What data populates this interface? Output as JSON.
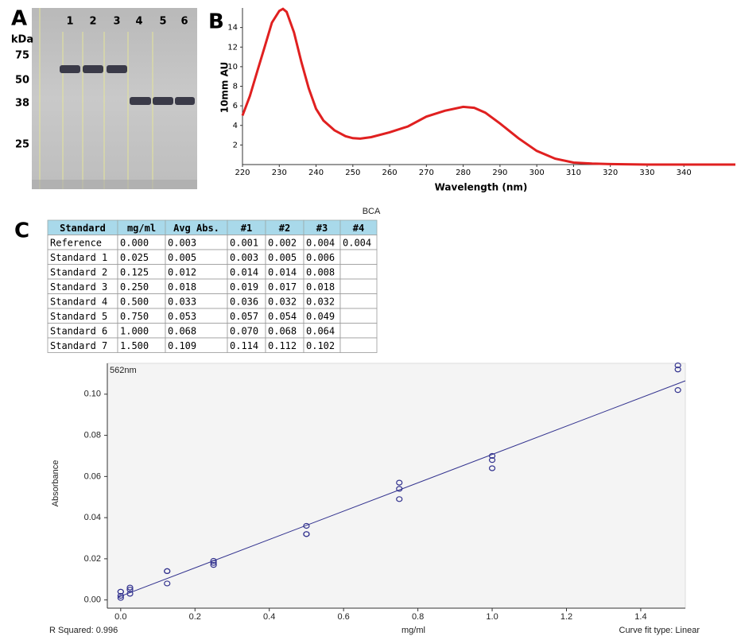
{
  "panel_labels": [
    "A",
    "B",
    "C"
  ],
  "gel": {
    "unit_label": "kDa",
    "lanes": [
      "1",
      "2",
      "3",
      "4",
      "5",
      "6"
    ],
    "markers": [
      75,
      50,
      38,
      25
    ]
  },
  "table": {
    "title": "BCA",
    "header": [
      "Standard",
      "mg/ml",
      "Avg Abs.",
      "#1",
      "#2",
      "#3",
      "#4"
    ],
    "rows": [
      [
        "Reference",
        "0.000",
        "0.003",
        "0.001",
        "0.002",
        "0.004",
        "0.004"
      ],
      [
        "Standard 1",
        "0.025",
        "0.005",
        "0.003",
        "0.005",
        "0.006"
      ],
      [
        "Standard 2",
        "0.125",
        "0.012",
        "0.014",
        "0.014",
        "0.008"
      ],
      [
        "Standard 3",
        "0.250",
        "0.018",
        "0.019",
        "0.017",
        "0.018"
      ],
      [
        "Standard 4",
        "0.500",
        "0.033",
        "0.036",
        "0.032",
        "0.032"
      ],
      [
        "Standard 5",
        "0.750",
        "0.053",
        "0.057",
        "0.054",
        "0.049"
      ],
      [
        "Standard 6",
        "1.000",
        "0.068",
        "0.070",
        "0.068",
        "0.064"
      ],
      [
        "Standard 7",
        "1.500",
        "0.109",
        "0.114",
        "0.112",
        "0.102"
      ]
    ]
  },
  "chart_data": [
    {
      "type": "line",
      "ylabel": "10mm AU",
      "xlabel": "Wavelength (nm)",
      "color": "#e02020",
      "x": [
        220,
        222,
        224,
        226,
        228,
        230,
        231,
        232,
        234,
        236,
        238,
        240,
        242,
        245,
        248,
        250,
        252,
        255,
        260,
        265,
        270,
        275,
        280,
        283,
        286,
        290,
        295,
        300,
        305,
        310,
        315,
        320,
        330,
        340,
        350,
        354
      ],
      "values": [
        5.0,
        7.0,
        9.5,
        12.0,
        14.5,
        15.7,
        15.9,
        15.6,
        13.5,
        10.5,
        7.8,
        5.7,
        4.5,
        3.5,
        2.9,
        2.7,
        2.65,
        2.8,
        3.3,
        3.9,
        4.9,
        5.5,
        5.9,
        5.8,
        5.3,
        4.2,
        2.7,
        1.4,
        0.6,
        0.2,
        0.1,
        0.05,
        0,
        0,
        0,
        0
      ],
      "xlim": [
        220,
        354
      ],
      "ylim": [
        0,
        16
      ],
      "xticks": [
        220,
        230,
        240,
        250,
        260,
        270,
        280,
        290,
        300,
        310,
        320,
        330,
        340
      ],
      "yticks": [
        2,
        4,
        6,
        8,
        10,
        12,
        14
      ]
    },
    {
      "type": "scatter",
      "series_label": "562nm",
      "ylabel": "Absorbance",
      "xlabel": "mg/ml",
      "r_squared_label": "R Squared: 0.996",
      "fit_label": "Curve fit type: Linear",
      "color": "#33338f",
      "x": [
        0,
        0,
        0,
        0,
        0.025,
        0.025,
        0.025,
        0.125,
        0.125,
        0.125,
        0.25,
        0.25,
        0.25,
        0.5,
        0.5,
        0.5,
        0.75,
        0.75,
        0.75,
        1.0,
        1.0,
        1.0,
        1.5,
        1.5,
        1.5
      ],
      "values": [
        0.001,
        0.002,
        0.004,
        0.004,
        0.003,
        0.005,
        0.006,
        0.014,
        0.014,
        0.008,
        0.019,
        0.017,
        0.018,
        0.036,
        0.032,
        0.032,
        0.057,
        0.054,
        0.049,
        0.07,
        0.068,
        0.064,
        0.114,
        0.112,
        0.102
      ],
      "fit": {
        "x": [
          -0.005,
          1.52
        ],
        "values": [
          0.0015,
          0.1065
        ]
      },
      "xlim": [
        -0.036,
        1.52
      ],
      "ylim": [
        -0.004,
        0.115
      ],
      "xticks": [
        {
          "value": 0,
          "label": "0.0"
        },
        0.2,
        0.4,
        0.6,
        0.8,
        {
          "value": 1,
          "label": "1.0"
        },
        1.2,
        1.4
      ],
      "yticks": [
        {
          "value": 0,
          "label": "0.00"
        },
        0.02,
        0.04,
        0.06,
        0.08,
        {
          "value": 0.1,
          "label": "0.10"
        }
      ]
    }
  ]
}
